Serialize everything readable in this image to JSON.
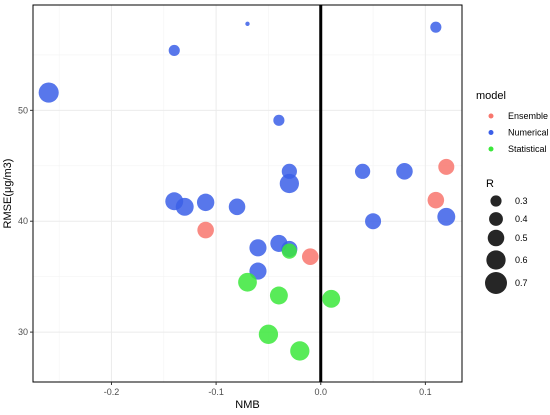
{
  "chart_data": {
    "type": "scatter",
    "xlabel": "NMB",
    "ylabel": "RMSE(μg/m3)",
    "xlim": [
      -0.275,
      0.135
    ],
    "ylim": [
      25.5,
      59.5
    ],
    "x_ticks": [
      -0.2,
      -0.1,
      0.0,
      0.1
    ],
    "x_tick_labels": [
      "-0.2",
      "-0.1",
      "0.0",
      "0.1"
    ],
    "y_ticks": [
      30,
      40,
      50
    ],
    "y_tick_labels": [
      "30",
      "40",
      "50"
    ],
    "grid": true,
    "vertical_reference_line": 0.0,
    "legend_placement": "right",
    "legends": {
      "color": {
        "title": "model",
        "entries": [
          {
            "name": "Ensemble",
            "color": "#f8766d"
          },
          {
            "name": "Numerical",
            "color": "#3b5fe8"
          },
          {
            "name": "Statistical",
            "color": "#3be83b"
          }
        ]
      },
      "size": {
        "title": "R",
        "entries": [
          {
            "label": "0.3",
            "value": 0.3
          },
          {
            "label": "0.4",
            "value": 0.4
          },
          {
            "label": "0.5",
            "value": 0.5
          },
          {
            "label": "0.6",
            "value": 0.6
          },
          {
            "label": "0.7",
            "value": 0.7
          }
        ]
      }
    },
    "series": [
      {
        "name": "Numerical",
        "color": "#3b5fe8",
        "points": [
          {
            "x": -0.07,
            "y": 57.8,
            "r": 0.05
          },
          {
            "x": 0.11,
            "y": 57.5,
            "r": 0.3
          },
          {
            "x": -0.14,
            "y": 55.4,
            "r": 0.3
          },
          {
            "x": -0.26,
            "y": 51.6,
            "r": 0.63
          },
          {
            "x": -0.04,
            "y": 49.1,
            "r": 0.3
          },
          {
            "x": -0.03,
            "y": 44.5,
            "r": 0.45
          },
          {
            "x": 0.04,
            "y": 44.5,
            "r": 0.45
          },
          {
            "x": 0.08,
            "y": 44.5,
            "r": 0.5
          },
          {
            "x": -0.03,
            "y": 43.4,
            "r": 0.6
          },
          {
            "x": -0.14,
            "y": 41.8,
            "r": 0.55
          },
          {
            "x": -0.11,
            "y": 41.7,
            "r": 0.53
          },
          {
            "x": -0.13,
            "y": 41.3,
            "r": 0.55
          },
          {
            "x": -0.08,
            "y": 41.3,
            "r": 0.5
          },
          {
            "x": 0.12,
            "y": 40.4,
            "r": 0.55
          },
          {
            "x": 0.05,
            "y": 40.0,
            "r": 0.48
          },
          {
            "x": -0.04,
            "y": 38.0,
            "r": 0.52
          },
          {
            "x": -0.06,
            "y": 37.6,
            "r": 0.52
          },
          {
            "x": -0.03,
            "y": 37.5,
            "r": 0.48
          },
          {
            "x": -0.06,
            "y": 35.5,
            "r": 0.52
          }
        ]
      },
      {
        "name": "Ensemble",
        "color": "#f8766d",
        "points": [
          {
            "x": 0.12,
            "y": 44.9,
            "r": 0.48
          },
          {
            "x": 0.11,
            "y": 41.9,
            "r": 0.5
          },
          {
            "x": -0.11,
            "y": 39.2,
            "r": 0.5
          },
          {
            "x": -0.01,
            "y": 36.8,
            "r": 0.5
          }
        ]
      },
      {
        "name": "Statistical",
        "color": "#3be83b",
        "points": [
          {
            "x": -0.03,
            "y": 37.3,
            "r": 0.45
          },
          {
            "x": -0.07,
            "y": 34.5,
            "r": 0.58
          },
          {
            "x": -0.04,
            "y": 33.3,
            "r": 0.55
          },
          {
            "x": 0.01,
            "y": 33.0,
            "r": 0.55
          },
          {
            "x": -0.05,
            "y": 29.8,
            "r": 0.6
          },
          {
            "x": -0.02,
            "y": 28.3,
            "r": 0.6
          }
        ]
      }
    ]
  }
}
